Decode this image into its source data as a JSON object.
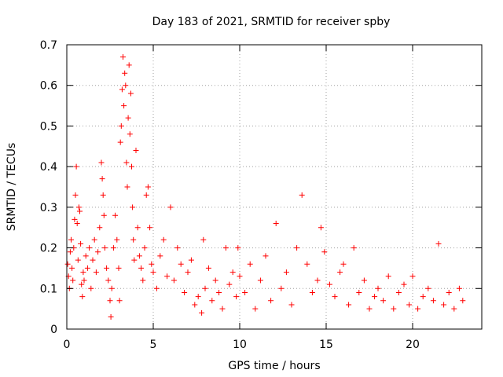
{
  "chart_data": {
    "type": "scatter",
    "title": "Day 183 of 2021, SRMTID for receiver spby",
    "xlabel": "GPS time / hours",
    "ylabel": "SRMTID / TECUs",
    "xlim": [
      0,
      24
    ],
    "ylim": [
      0,
      0.7
    ],
    "xticks": [
      0,
      5,
      10,
      15,
      20
    ],
    "xtick_labels": [
      "0",
      "5",
      "10",
      "15",
      "20"
    ],
    "yticks": [
      0,
      0.1,
      0.2,
      0.3,
      0.4,
      0.5,
      0.6,
      0.7
    ],
    "ytick_labels": [
      "0",
      "0.1",
      "0.2",
      "0.3",
      "0.4",
      "0.5",
      "0.6",
      "0.7"
    ],
    "grid": true,
    "marker": "+",
    "marker_color": "#ff0000",
    "series": [
      {
        "name": "SRMTID",
        "color": "#ff0000",
        "points": [
          [
            0.05,
            0.16
          ],
          [
            0.1,
            0.13
          ],
          [
            0.15,
            0.1
          ],
          [
            0.2,
            0.19
          ],
          [
            0.25,
            0.22
          ],
          [
            0.3,
            0.15
          ],
          [
            0.35,
            0.12
          ],
          [
            0.4,
            0.2
          ],
          [
            0.45,
            0.27
          ],
          [
            0.5,
            0.33
          ],
          [
            0.55,
            0.4
          ],
          [
            0.6,
            0.26
          ],
          [
            0.65,
            0.17
          ],
          [
            0.7,
            0.3
          ],
          [
            0.75,
            0.29
          ],
          [
            0.8,
            0.21
          ],
          [
            0.85,
            0.11
          ],
          [
            0.9,
            0.08
          ],
          [
            0.95,
            0.14
          ],
          [
            1.0,
            0.12
          ],
          [
            1.1,
            0.18
          ],
          [
            1.2,
            0.15
          ],
          [
            1.3,
            0.2
          ],
          [
            1.4,
            0.1
          ],
          [
            1.5,
            0.17
          ],
          [
            1.6,
            0.22
          ],
          [
            1.7,
            0.14
          ],
          [
            1.8,
            0.19
          ],
          [
            1.9,
            0.25
          ],
          [
            2.0,
            0.41
          ],
          [
            2.05,
            0.37
          ],
          [
            2.1,
            0.33
          ],
          [
            2.15,
            0.28
          ],
          [
            2.2,
            0.2
          ],
          [
            2.3,
            0.15
          ],
          [
            2.4,
            0.12
          ],
          [
            2.5,
            0.07
          ],
          [
            2.55,
            0.03
          ],
          [
            2.6,
            0.1
          ],
          [
            2.7,
            0.2
          ],
          [
            2.8,
            0.28
          ],
          [
            2.9,
            0.22
          ],
          [
            3.0,
            0.15
          ],
          [
            3.05,
            0.07
          ],
          [
            3.1,
            0.46
          ],
          [
            3.15,
            0.5
          ],
          [
            3.2,
            0.59
          ],
          [
            3.25,
            0.67
          ],
          [
            3.3,
            0.55
          ],
          [
            3.35,
            0.63
          ],
          [
            3.4,
            0.6
          ],
          [
            3.45,
            0.41
          ],
          [
            3.5,
            0.35
          ],
          [
            3.55,
            0.52
          ],
          [
            3.6,
            0.65
          ],
          [
            3.65,
            0.48
          ],
          [
            3.7,
            0.58
          ],
          [
            3.75,
            0.4
          ],
          [
            3.8,
            0.3
          ],
          [
            3.85,
            0.22
          ],
          [
            3.9,
            0.17
          ],
          [
            4.0,
            0.44
          ],
          [
            4.1,
            0.25
          ],
          [
            4.2,
            0.18
          ],
          [
            4.3,
            0.15
          ],
          [
            4.4,
            0.12
          ],
          [
            4.5,
            0.2
          ],
          [
            4.6,
            0.33
          ],
          [
            4.7,
            0.35
          ],
          [
            4.8,
            0.25
          ],
          [
            4.9,
            0.16
          ],
          [
            5.0,
            0.14
          ],
          [
            5.2,
            0.1
          ],
          [
            5.4,
            0.18
          ],
          [
            5.6,
            0.22
          ],
          [
            5.8,
            0.13
          ],
          [
            6.0,
            0.3
          ],
          [
            6.2,
            0.12
          ],
          [
            6.4,
            0.2
          ],
          [
            6.6,
            0.16
          ],
          [
            6.8,
            0.09
          ],
          [
            7.0,
            0.14
          ],
          [
            7.2,
            0.17
          ],
          [
            7.4,
            0.06
          ],
          [
            7.6,
            0.08
          ],
          [
            7.8,
            0.04
          ],
          [
            7.9,
            0.22
          ],
          [
            8.0,
            0.1
          ],
          [
            8.2,
            0.15
          ],
          [
            8.4,
            0.07
          ],
          [
            8.6,
            0.12
          ],
          [
            8.8,
            0.09
          ],
          [
            9.0,
            0.05
          ],
          [
            9.2,
            0.2
          ],
          [
            9.4,
            0.11
          ],
          [
            9.6,
            0.14
          ],
          [
            9.8,
            0.08
          ],
          [
            9.9,
            0.2
          ],
          [
            10.0,
            0.13
          ],
          [
            10.3,
            0.09
          ],
          [
            10.6,
            0.16
          ],
          [
            10.9,
            0.05
          ],
          [
            11.2,
            0.12
          ],
          [
            11.5,
            0.18
          ],
          [
            11.8,
            0.07
          ],
          [
            12.1,
            0.26
          ],
          [
            12.4,
            0.1
          ],
          [
            12.7,
            0.14
          ],
          [
            13.0,
            0.06
          ],
          [
            13.3,
            0.2
          ],
          [
            13.6,
            0.33
          ],
          [
            13.9,
            0.16
          ],
          [
            14.2,
            0.09
          ],
          [
            14.5,
            0.12
          ],
          [
            14.7,
            0.25
          ],
          [
            14.9,
            0.19
          ],
          [
            15.2,
            0.11
          ],
          [
            15.5,
            0.08
          ],
          [
            15.8,
            0.14
          ],
          [
            16.0,
            0.16
          ],
          [
            16.3,
            0.06
          ],
          [
            16.6,
            0.2
          ],
          [
            16.9,
            0.09
          ],
          [
            17.2,
            0.12
          ],
          [
            17.5,
            0.05
          ],
          [
            17.8,
            0.08
          ],
          [
            18.0,
            0.1
          ],
          [
            18.3,
            0.07
          ],
          [
            18.6,
            0.13
          ],
          [
            18.9,
            0.05
          ],
          [
            19.2,
            0.09
          ],
          [
            19.5,
            0.11
          ],
          [
            19.8,
            0.06
          ],
          [
            20.0,
            0.13
          ],
          [
            20.3,
            0.05
          ],
          [
            20.6,
            0.08
          ],
          [
            20.9,
            0.1
          ],
          [
            21.2,
            0.07
          ],
          [
            21.5,
            0.21
          ],
          [
            21.8,
            0.06
          ],
          [
            22.1,
            0.09
          ],
          [
            22.4,
            0.05
          ],
          [
            22.7,
            0.1
          ],
          [
            22.9,
            0.07
          ]
        ]
      }
    ]
  }
}
